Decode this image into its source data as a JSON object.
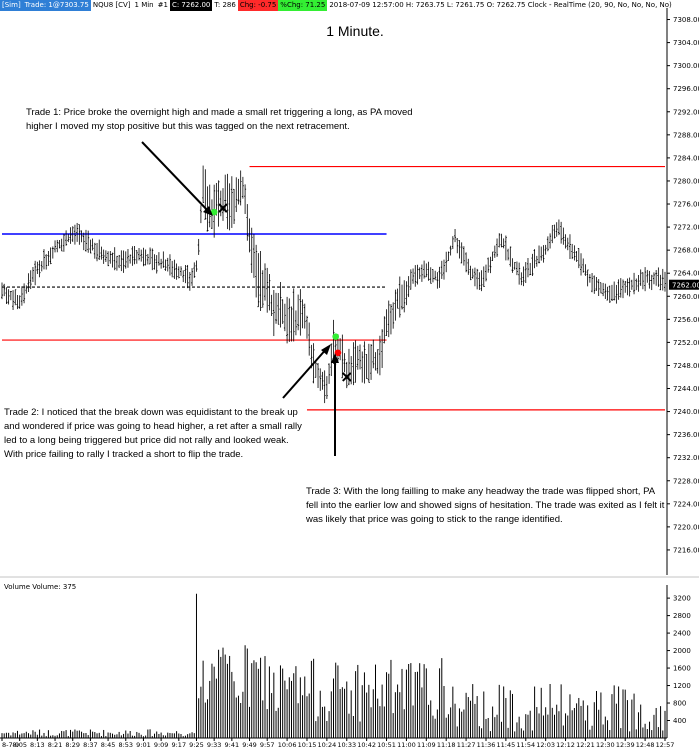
{
  "topbar": {
    "account": "[Sim]",
    "trade": "Trade: 1@7303.75",
    "instrument": "NQU8 [CV]",
    "interval": "1 Min",
    "slot": "#1",
    "close_value": "C: 7262.00",
    "ticks": "T: 286",
    "chg": "Chg: -0.75",
    "pchg": "%Chg: 71.25",
    "ohlc": "2018-07-09 12:57:00  H: 7263.75  L: 7261.75  O: 7262.75  Clock - RealTime  (20, 90, No, No, No, No)"
  },
  "chart_data": {
    "type": "candlestick",
    "title": "1 Minute.",
    "price_axis": {
      "ylim": [
        7212,
        7310
      ],
      "ticks": [
        "7308.00",
        "7304.00",
        "7300.00",
        "7296.00",
        "7292.00",
        "7288.00",
        "7284.00",
        "7280.00",
        "7276.00",
        "7272.00",
        "7268.00",
        "7264.00",
        "7260.00",
        "7256.00",
        "7252.00",
        "7248.00",
        "7244.00",
        "7240.00",
        "7236.00",
        "7232.00",
        "7228.00",
        "7224.00",
        "7220.00",
        "7216.00"
      ],
      "last_price_label": "7262.00"
    },
    "volume_axis": {
      "label": "Volume  Volume: 375",
      "ylim": [
        0,
        3500
      ],
      "ticks": [
        "3200",
        "2800",
        "2400",
        "2000",
        "1600",
        "1200",
        "800",
        "400"
      ]
    },
    "time_labels": [
      "8-7-9",
      "8:05",
      "8:13",
      "8:21",
      "8:29",
      "8:37",
      "8:45",
      "8:53",
      "9:01",
      "9:09",
      "9:17",
      "9:25",
      "9:33",
      "9:41",
      "9:49",
      "9:57",
      "10:06",
      "10:15",
      "10:24",
      "10:33",
      "10:42",
      "10:51",
      "11:00",
      "11:09",
      "11:18",
      "11:27",
      "11:36",
      "11:45",
      "11:54",
      "12:03",
      "12:12",
      "12:21",
      "12:30",
      "12:39",
      "12:48",
      "12:57"
    ],
    "levels": [
      {
        "name": "overnight-high",
        "price": 7282.5,
        "color": "#ff0000",
        "from_time": "9:49",
        "to_time": "12:57"
      },
      {
        "name": "range-level",
        "price": 7270.8,
        "color": "#0000ff",
        "from_time": "8-7-9",
        "to_time": "10:51"
      },
      {
        "name": "close-dashed",
        "price": 7261.6,
        "color": "#000000",
        "from_time": "8-7-9",
        "to_time": "10:51",
        "dashed": true
      },
      {
        "name": "mid-level",
        "price": 7252.4,
        "color": "#ff0000",
        "from_time": "8-7-9",
        "to_time": "10:51"
      },
      {
        "name": "low-level",
        "price": 7240.3,
        "color": "#ff0000",
        "from_time": "10:15",
        "to_time": "12:57"
      }
    ],
    "markers": [
      {
        "name": "trade1-entry",
        "kind": "dot",
        "color": "#33ee33",
        "time": "9:33",
        "price": 7274.6
      },
      {
        "name": "trade1-exit",
        "kind": "x",
        "color": "#000000",
        "time": "9:37",
        "price": 7275.3
      },
      {
        "name": "trade2-entry",
        "kind": "dot",
        "color": "#33ee33",
        "time": "10:28",
        "price": 7253.0
      },
      {
        "name": "trade3-entry",
        "kind": "dot",
        "color": "#ff0000",
        "time": "10:29",
        "price": 7250.2
      },
      {
        "name": "trade3-exit",
        "kind": "x",
        "color": "#000000",
        "time": "10:33",
        "price": 7246.0
      }
    ]
  },
  "notes": {
    "trade1": "Trade 1:  Price broke the overnight high and made a small ret triggering a long, as PA moved higher I moved my stop positive but this was tagged on the next retracement.",
    "trade2": "Trade 2:  I noticed that the break down was equidistant to the break up and wondered if price was going to head higher, a ret after a small rally led to a long being triggered but price did not rally and looked weak.  With price failing to rally I tracked a short to flip the trade.",
    "trade3": "Trade 3:  With the long failling to make any headway the trade was flipped short, PA fell into the earlier low and showed signs of hesitation.  The trade was exited as I felt it was likely that price was going to stick to the range identified."
  }
}
